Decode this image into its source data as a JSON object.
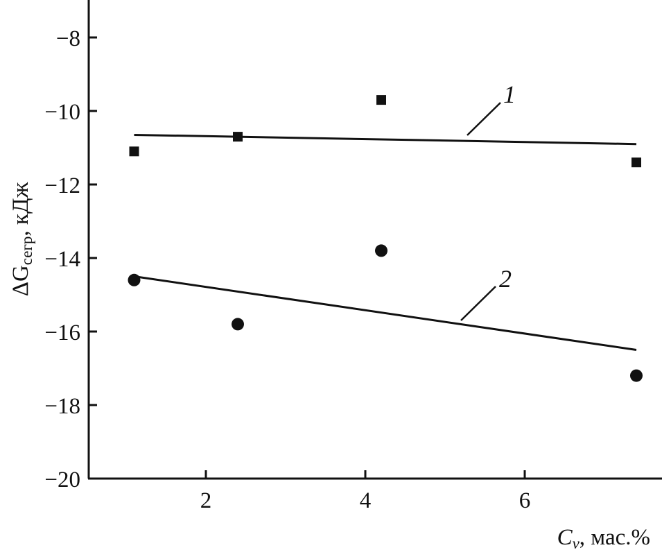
{
  "chart_data": {
    "type": "scatter",
    "title": "",
    "xlabel": {
      "main": "C",
      "sub": "v",
      "rest": ", мас.%"
    },
    "ylabel": {
      "main": "ΔG",
      "sub": "сегр",
      "rest": ", кДж"
    },
    "xlim": [
      0.7,
      8.1
    ],
    "ylim": [
      -20,
      -7
    ],
    "xticks": [
      2,
      4,
      6
    ],
    "yticks": [
      -20,
      -18,
      -16,
      -14,
      -12,
      -10,
      -8
    ],
    "xtick_labels": [
      "2",
      "4",
      "6"
    ],
    "ytick_labels": [
      "−20",
      "−18",
      "−16",
      "−14",
      "−12",
      "−10",
      "−8"
    ],
    "grid": false,
    "series": [
      {
        "name": "1",
        "marker": "square",
        "x": [
          1.1,
          2.4,
          4.2,
          7.4
        ],
        "y": [
          -11.1,
          -10.7,
          -9.7,
          -11.4
        ],
        "fit": {
          "x": [
            1.1,
            7.4
          ],
          "y": [
            -10.65,
            -10.9
          ]
        }
      },
      {
        "name": "2",
        "marker": "circle",
        "x": [
          1.1,
          2.4,
          4.2,
          7.4
        ],
        "y": [
          -14.6,
          -15.8,
          -13.8,
          -17.2
        ],
        "fit": {
          "x": [
            1.1,
            7.4
          ],
          "y": [
            -14.5,
            -16.5
          ]
        }
      }
    ],
    "colors": {
      "ink": "#111111",
      "background": "#ffffff"
    }
  }
}
